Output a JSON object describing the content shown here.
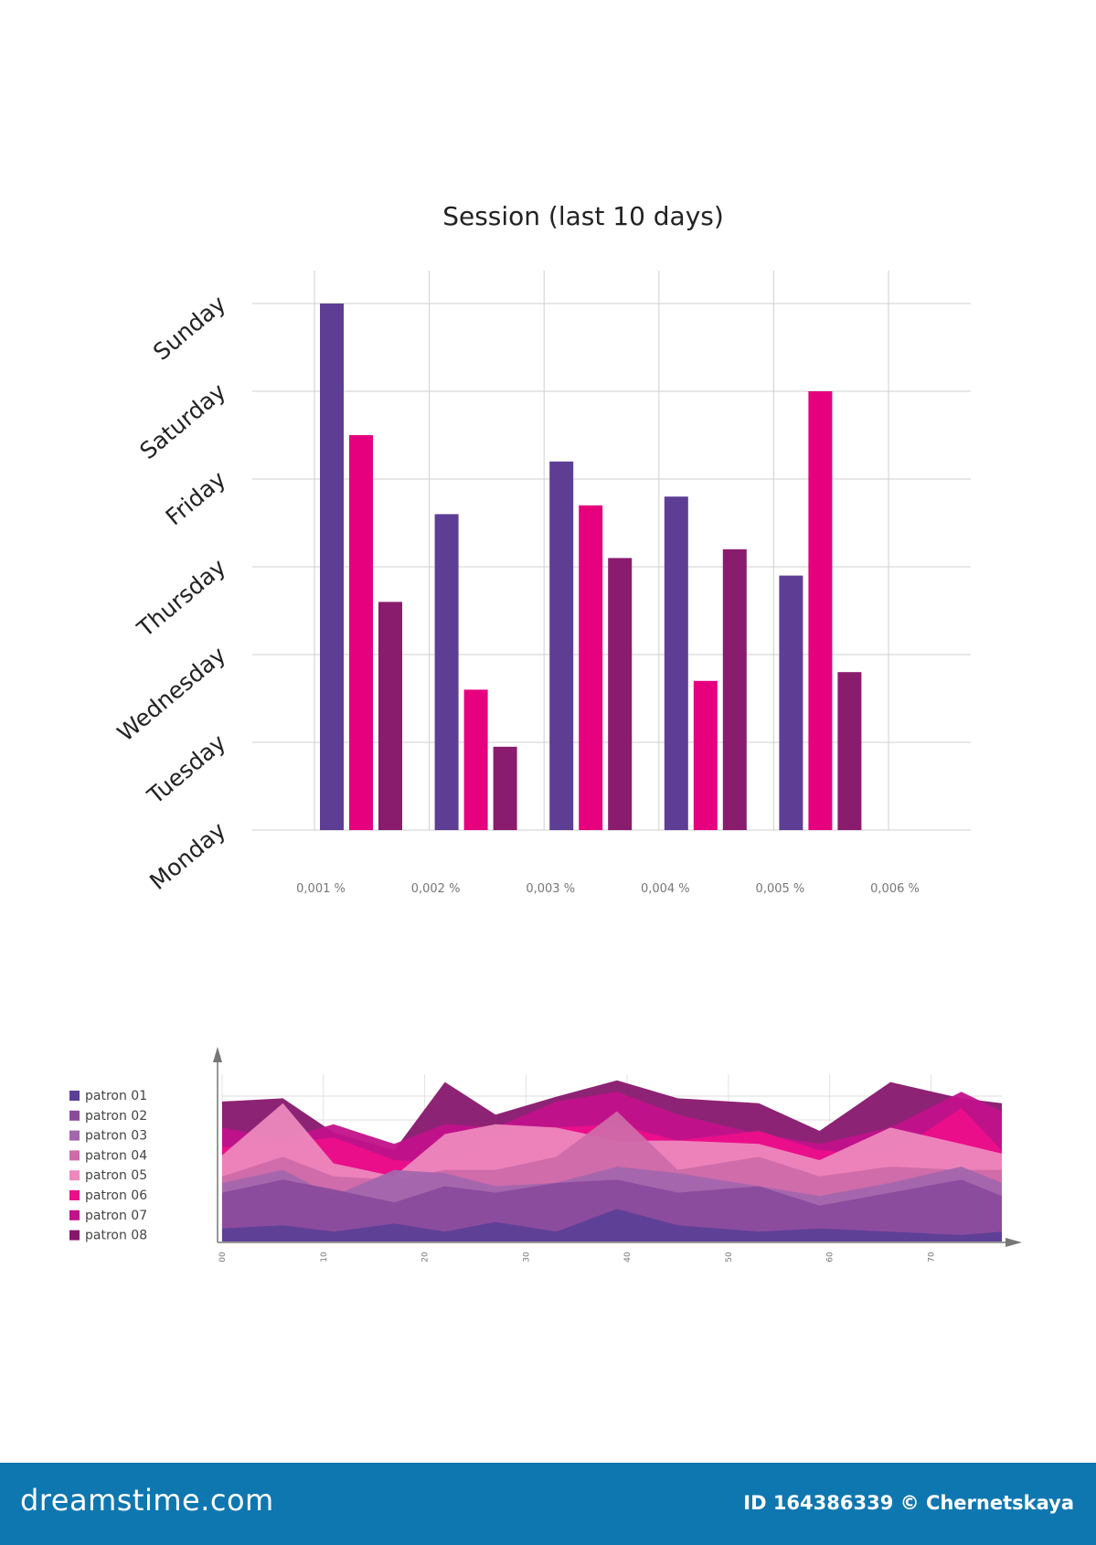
{
  "colors": {
    "purple": "#5e3e95",
    "pink": "#e6007e",
    "plum": "#8a1c6e",
    "grid": "#cfcfcf",
    "footer_bg": "#0f77b0"
  },
  "chart_data": [
    {
      "type": "bar",
      "title": "Session (last 10 days)",
      "orientation": "vertical",
      "categories": [
        "0,001 %",
        "0,002 %",
        "0,003 %",
        "0,004 %",
        "0,005 %",
        "0,006 %"
      ],
      "y_categories": [
        "Monday",
        "Tuesday",
        "Wednesday",
        "Thursday",
        "Friday",
        "Saturday",
        "Sunday"
      ],
      "ylim": [
        0,
        6
      ],
      "grid": true,
      "series": [
        {
          "values": [
            6.0,
            3.6,
            4.2,
            3.8,
            2.9,
            null
          ],
          "color": "#5e3e95"
        },
        {
          "values": [
            4.5,
            1.6,
            3.7,
            1.7,
            5.0,
            null
          ],
          "color": "#e6007e"
        },
        {
          "values": [
            2.6,
            0.95,
            3.1,
            3.2,
            1.8,
            null
          ],
          "color": "#8a1c6e"
        }
      ]
    },
    {
      "type": "area",
      "x_tick_labels": [
        "00",
        "10",
        "20",
        "30",
        "40",
        "50",
        "60",
        "70"
      ],
      "xlim": [
        0,
        77
      ],
      "ylim": [
        0,
        100
      ],
      "grid": true,
      "legend_position": "left",
      "x": [
        0,
        6,
        11,
        17,
        22,
        27,
        33,
        39,
        45,
        53,
        59,
        66,
        73,
        77
      ],
      "series": [
        {
          "name": "patron 08",
          "color": "#87176d",
          "values": [
            86,
            88,
            67,
            56,
            98,
            78,
            89,
            99,
            88,
            85,
            68,
            98,
            88,
            85
          ]
        },
        {
          "name": "patron 07",
          "color": "#c2128b",
          "values": [
            70,
            63,
            72,
            60,
            72,
            70,
            86,
            92,
            78,
            66,
            60,
            70,
            92,
            80
          ]
        },
        {
          "name": "patron 06",
          "color": "#ec0f8a",
          "values": [
            58,
            60,
            64,
            50,
            48,
            66,
            70,
            72,
            62,
            68,
            56,
            53,
            82,
            56
          ]
        },
        {
          "name": "patron 05",
          "color": "#ed89bd",
          "values": [
            53,
            85,
            48,
            40,
            66,
            72,
            70,
            62,
            62,
            60,
            50,
            70,
            60,
            54
          ]
        },
        {
          "name": "patron 04",
          "color": "#cf6aa9",
          "values": [
            40,
            52,
            40,
            38,
            44,
            44,
            52,
            80,
            44,
            52,
            40,
            46,
            44,
            44
          ]
        },
        {
          "name": "patron 03",
          "color": "#a366ad",
          "values": [
            36,
            44,
            28,
            44,
            42,
            34,
            36,
            46,
            42,
            34,
            28,
            36,
            46,
            36
          ]
        },
        {
          "name": "patron 02",
          "color": "#8a4b9c",
          "values": [
            30,
            38,
            32,
            24,
            34,
            30,
            36,
            38,
            30,
            34,
            22,
            30,
            38,
            28
          ]
        },
        {
          "name": "patron 01",
          "color": "#5d3f97",
          "values": [
            8,
            10,
            6,
            11,
            6,
            12,
            6,
            20,
            10,
            6,
            8,
            6,
            4,
            6
          ]
        }
      ]
    }
  ],
  "footer": {
    "brand": "dreamstime.com",
    "credit": "ID 164386339 © Chernetskaya"
  }
}
